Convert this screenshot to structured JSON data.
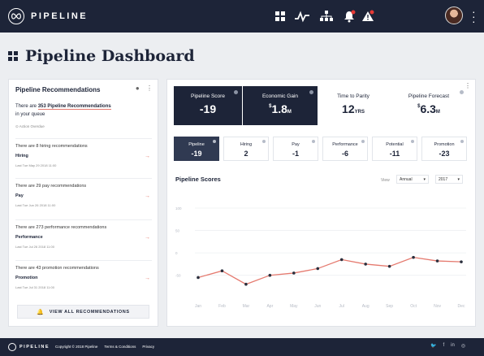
{
  "app": {
    "name": "PIPELINE"
  },
  "page": {
    "title": "Pipeline Dashboard"
  },
  "recommendations": {
    "title": "Pipeline Recommendations",
    "summary_pre": "There are ",
    "summary_highlight": "353 Pipeline Recommendations",
    "summary_post": "in your queue",
    "action_label": "Action Overdue",
    "items": [
      {
        "text": "There are 8 hiring recommendations",
        "category": "Hiring",
        "date": "Last Tue May 29 2018 11:00"
      },
      {
        "text": "There are 29 pay recommendations",
        "category": "Pay",
        "date": "Last Tue Jun 26 2018 11:00"
      },
      {
        "text": "There are 273 performance recommendations",
        "category": "Performance",
        "date": "Last Tue Jul 26 2018 11:00"
      },
      {
        "text": "There are 43 promotion recommendations",
        "category": "Promotion",
        "date": "Last Tue Jul 31 2018 11:00"
      }
    ],
    "view_all": "VIEW ALL RECOMMENDATIONS"
  },
  "kpis": [
    {
      "label": "Pipeline Score",
      "value": "-19"
    },
    {
      "label": "Economic Gain",
      "prefix": "$",
      "value": "1.8",
      "suffix": "M"
    },
    {
      "label": "Time to Parity",
      "value": "12",
      "suffix": "YRS"
    },
    {
      "label": "Pipeline Forecast",
      "prefix": "$",
      "value": "6.3",
      "suffix": "M"
    }
  ],
  "subscores": [
    {
      "label": "Pipeline",
      "value": "-19"
    },
    {
      "label": "Hiring",
      "value": "2"
    },
    {
      "label": "Pay",
      "value": "-1"
    },
    {
      "label": "Performance",
      "value": "-6"
    },
    {
      "label": "Potential",
      "value": "-11"
    },
    {
      "label": "Promotion",
      "value": "-23"
    }
  ],
  "chart_controls": {
    "view_label": "View",
    "period": "Annual",
    "year": "2017"
  },
  "colors": {
    "navy": "#1d2438",
    "accent": "#e57a6f",
    "active_tile": "#303a52"
  },
  "chart_data": {
    "type": "line",
    "title": "Pipeline Scores",
    "categories": [
      "Jan",
      "Feb",
      "Mar",
      "Apr",
      "May",
      "Jun",
      "Jul",
      "Aug",
      "Sep",
      "Oct",
      "Nov",
      "Dec"
    ],
    "yticks": [
      "100",
      "50",
      "0",
      "-50"
    ],
    "ylim": [
      -85,
      100
    ],
    "grid": true,
    "series": [
      {
        "values": [
          -55,
          -40,
          -70,
          -50,
          -45,
          -35,
          -15,
          -25,
          -30,
          -10,
          -18,
          -20
        ]
      }
    ]
  },
  "footer": {
    "copyright": "Copyright © 2018 Pipeline",
    "links": [
      "Terms & Conditions",
      "Privacy"
    ],
    "social": [
      "twitter-icon",
      "facebook-icon",
      "linkedin-icon",
      "instagram-icon"
    ]
  }
}
